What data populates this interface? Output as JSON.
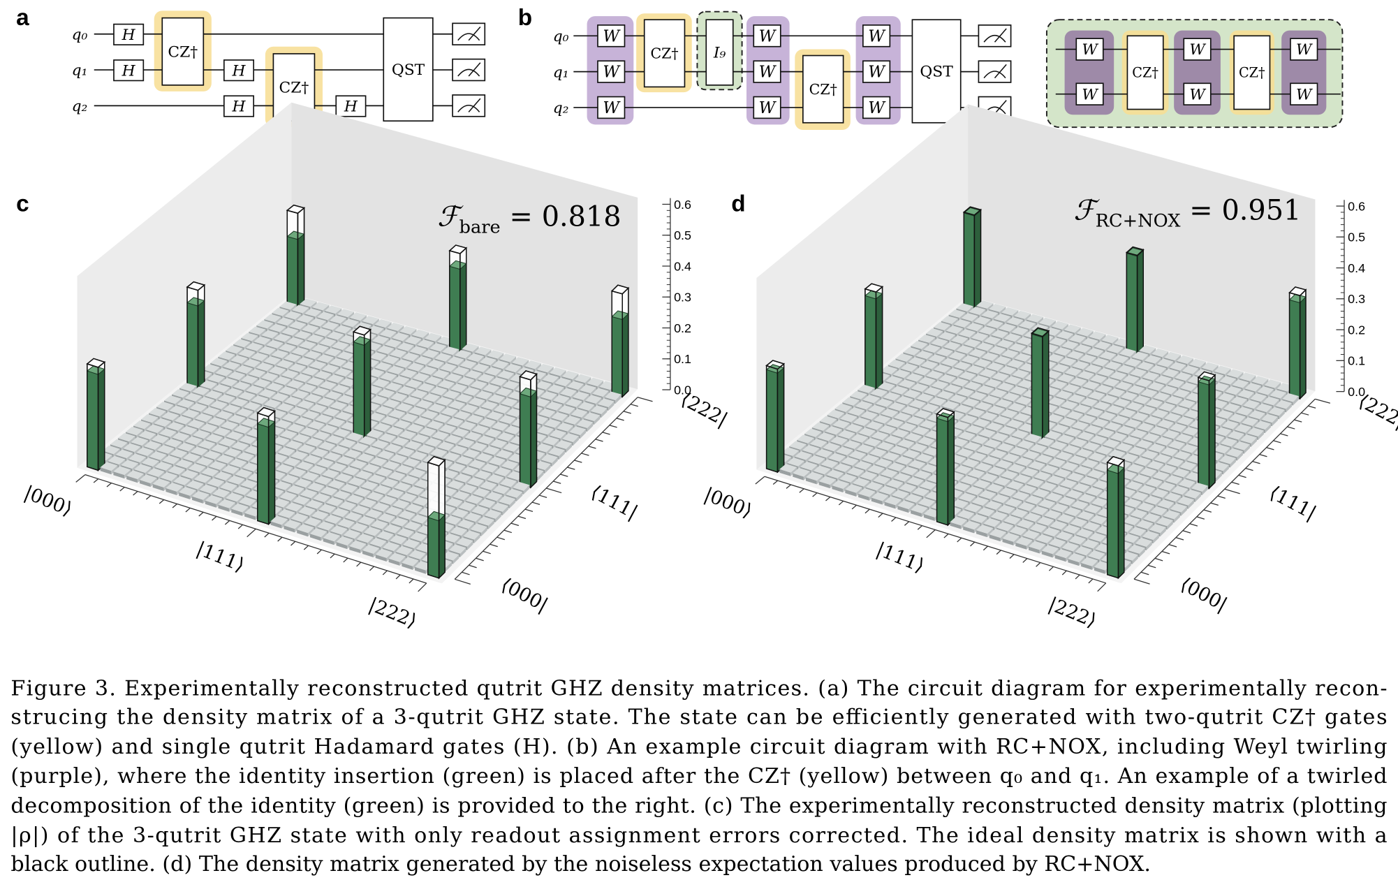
{
  "circuit_a": {
    "label": "a",
    "qubits": [
      "q₀",
      "q₁",
      "q₂"
    ],
    "gates": [
      "H",
      "H",
      "CZ†",
      "H",
      "H",
      "CZ†",
      "H",
      "QST"
    ]
  },
  "circuit_b": {
    "label": "b",
    "qubits": [
      "q₀",
      "q₁",
      "q₂"
    ],
    "gates": [
      "W",
      "W",
      "W",
      "CZ†",
      "I₉",
      "W",
      "W",
      "W",
      "CZ†",
      "W",
      "W",
      "W",
      "QST"
    ],
    "inset_gates": [
      "W",
      "W",
      "CZ†",
      "W",
      "W",
      "CZ†",
      "W",
      "W"
    ]
  },
  "chart_data": [
    {
      "type": "bar3d",
      "label": "c",
      "fidelity": {
        "symbol": "ℱ",
        "subscript": "bare",
        "relation": "=",
        "value": 0.818
      },
      "row_labels": [
        "|000⟩",
        "|111⟩",
        "|222⟩"
      ],
      "col_labels": [
        "⟨000|",
        "⟨111|",
        "⟨222|"
      ],
      "values": [
        [
          0.31,
          0.28,
          0.24
        ],
        [
          0.3,
          0.3,
          0.28
        ],
        [
          0.17,
          0.28,
          0.25
        ]
      ],
      "ideal": 0.333,
      "color": "#3f7d52",
      "zlim": [
        0,
        0.62
      ],
      "zticks": [
        {
          "value": 0,
          "label": "0.0"
        },
        0.1,
        0.2,
        0.3,
        0.4,
        0.5,
        0.6
      ]
    },
    {
      "type": "bar3d",
      "label": "d",
      "fidelity": {
        "symbol": "ℱ",
        "subscript": "RC+NOX",
        "relation": "=",
        "value": 0.951
      },
      "row_labels": [
        "|000⟩",
        "|111⟩",
        "|222⟩"
      ],
      "col_labels": [
        "⟨000|",
        "⟨111|",
        "⟨222|"
      ],
      "values": [
        [
          0.32,
          0.31,
          0.33
        ],
        [
          0.32,
          0.33,
          0.33
        ],
        [
          0.31,
          0.32,
          0.31
        ]
      ],
      "ideal": 0.333,
      "color": "#3f7d52",
      "zlim": [
        0,
        0.62
      ],
      "zticks": [
        {
          "value": 0,
          "label": "0.0"
        },
        0.1,
        0.2,
        0.3,
        0.4,
        0.5,
        0.6
      ]
    }
  ],
  "caption": {
    "lines": [
      "Figure 3.  Experimentally reconstructed qutrit GHZ density matrices.  (a) The circuit diagram for experimentally recon-",
      "strucing the density matrix of a 3-qutrit GHZ state.  The state can be efficiently generated with two-qutrit CZ† gates",
      "(yellow) and single qutrit Hadamard gates (H). (b) An example circuit diagram with RC+NOX, including Weyl twirling",
      "(purple), where the identity insertion (green) is placed after the CZ† (yellow) between q₀ and q₁.  An example of a twirled",
      "decomposition of the identity (green) is provided to the right.  (c) The experimentally reconstructed density matrix (plotting",
      "|ρ|) of the 3-qutrit GHZ state with only readout assignment errors corrected.  The ideal density matrix is shown with a",
      "black outline. (d) The density matrix generated by the noiseless expectation values produced by RC+NOX."
    ]
  }
}
